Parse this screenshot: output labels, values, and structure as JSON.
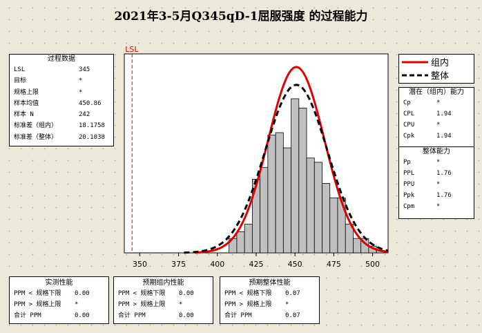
{
  "title": "2021年3-5月Q345qD-1屈服强度 的过程能力",
  "process_data": {
    "header": "过程数据",
    "rows": [
      {
        "label": "LSL",
        "value": "345"
      },
      {
        "label": "目标",
        "value": "*"
      },
      {
        "label": "规格上限",
        "value": "*"
      },
      {
        "label": "样本均值",
        "value": "450.86"
      },
      {
        "label": "样本 N",
        "value": "242"
      },
      {
        "label": "标准差（组内）",
        "value": "18.1758"
      },
      {
        "label": "标准差（整体）",
        "value": "20.1038"
      }
    ]
  },
  "legend": {
    "items": [
      {
        "label": "组内",
        "color": "#e00000",
        "style": "solid"
      },
      {
        "label": "整体",
        "color": "#000000",
        "style": "dashed"
      }
    ]
  },
  "potential": {
    "header": "潜在（组内）能力",
    "rows": [
      {
        "label": "Cp",
        "value": "*"
      },
      {
        "label": "CPL",
        "value": "1.94"
      },
      {
        "label": "CPU",
        "value": "*"
      },
      {
        "label": "Cpk",
        "value": "1.94"
      }
    ]
  },
  "overall": {
    "header": "整体能力",
    "rows": [
      {
        "label": "Pp",
        "value": "*"
      },
      {
        "label": "PPL",
        "value": "1.76"
      },
      {
        "label": "PPU",
        "value": "*"
      },
      {
        "label": "Ppk",
        "value": "1.76"
      },
      {
        "label": "Cpm",
        "value": "*"
      }
    ]
  },
  "observed": {
    "header": "实测性能",
    "rows": [
      {
        "label": "PPM < 规格下限",
        "value": "0.00"
      },
      {
        "label": "PPM > 规格上限",
        "value": "*"
      },
      {
        "label": "合计 PPM",
        "value": "0.00"
      }
    ]
  },
  "exp_within": {
    "header": "预期组内性能",
    "rows": [
      {
        "label": "PPM < 规格下限",
        "value": "0.00"
      },
      {
        "label": "PPM > 规格上限",
        "value": "*"
      },
      {
        "label": "合计 PPM",
        "value": "0.00"
      }
    ]
  },
  "exp_overall": {
    "header": "预期整体性能",
    "rows": [
      {
        "label": "PPM < 规格下限",
        "value": "0.07"
      },
      {
        "label": "PPM > 规格上限",
        "value": "*"
      },
      {
        "label": "合计 PPM",
        "value": "0.07"
      }
    ]
  },
  "chart_data": {
    "type": "bar",
    "title": "2021年3-5月Q345qD-1屈服强度 的过程能力",
    "xlim": [
      340,
      510
    ],
    "ylim": [
      0,
      0.0235
    ],
    "x_ticks": [
      350,
      375,
      400,
      425,
      450,
      475,
      500
    ],
    "bin_width": 5,
    "bins": [
      {
        "x": 410,
        "y": 0.0017
      },
      {
        "x": 415,
        "y": 0.0025
      },
      {
        "x": 420,
        "y": 0.0034
      },
      {
        "x": 425,
        "y": 0.0087
      },
      {
        "x": 430,
        "y": 0.0101
      },
      {
        "x": 435,
        "y": 0.0139
      },
      {
        "x": 440,
        "y": 0.0142
      },
      {
        "x": 445,
        "y": 0.0124
      },
      {
        "x": 450,
        "y": 0.0182
      },
      {
        "x": 455,
        "y": 0.0171
      },
      {
        "x": 460,
        "y": 0.0112
      },
      {
        "x": 465,
        "y": 0.0107
      },
      {
        "x": 470,
        "y": 0.0082
      },
      {
        "x": 475,
        "y": 0.0065
      },
      {
        "x": 480,
        "y": 0.0065
      },
      {
        "x": 485,
        "y": 0.0034
      },
      {
        "x": 490,
        "y": 0.0017
      },
      {
        "x": 495,
        "y": 0.0017
      },
      {
        "x": 500,
        "y": 0.0008
      },
      {
        "x": 505,
        "y": 0.0003
      }
    ],
    "reference_lines": [
      {
        "label": "LSL",
        "x": 345,
        "color": "#e00000"
      }
    ],
    "curves": [
      {
        "name": "组内",
        "mean": 450.86,
        "sd": 18.1758,
        "color": "#e00000",
        "style": "solid"
      },
      {
        "name": "整体",
        "mean": 450.86,
        "sd": 20.1038,
        "color": "#000000",
        "style": "dashed"
      }
    ],
    "grid": false
  }
}
